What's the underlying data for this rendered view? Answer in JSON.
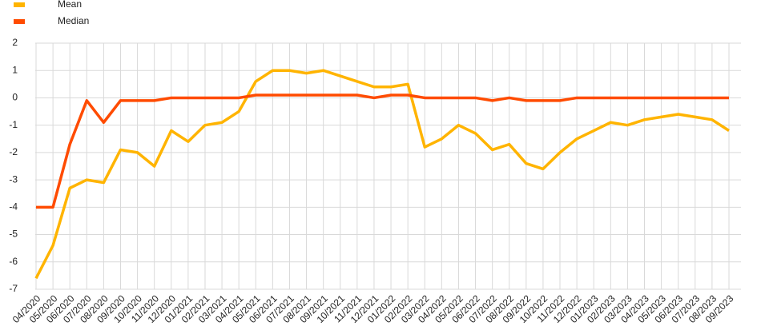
{
  "chart_data": {
    "type": "line",
    "categories": [
      "04/2020",
      "05/2020",
      "06/2020",
      "07/2020",
      "08/2020",
      "09/2020",
      "10/2020",
      "11/2020",
      "12/2020",
      "01/2021",
      "02/2021",
      "03/2021",
      "04/2021",
      "05/2021",
      "06/2021",
      "07/2021",
      "08/2021",
      "09/2021",
      "10/2021",
      "11/2021",
      "12/2021",
      "01/2022",
      "02/2022",
      "03/2022",
      "04/2022",
      "05/2022",
      "06/2022",
      "07/2022",
      "08/2022",
      "09/2022",
      "10/2022",
      "11/2022",
      "12/2022",
      "01/2023",
      "02/2023",
      "03/2023",
      "04/2023",
      "05/2023",
      "06/2023",
      "07/2023",
      "08/2023",
      "09/2023"
    ],
    "series": [
      {
        "name": "Mean",
        "color": "#ffb400",
        "values": [
          -6.6,
          -5.4,
          -3.3,
          -3.0,
          -3.1,
          -1.9,
          -2.0,
          -2.5,
          -1.2,
          -1.6,
          -1.0,
          -0.9,
          -0.5,
          0.6,
          1.0,
          1.0,
          0.9,
          1.0,
          0.8,
          0.6,
          0.4,
          0.4,
          0.5,
          -1.8,
          -1.5,
          -1.0,
          -1.3,
          -1.9,
          -1.7,
          -2.4,
          -2.6,
          -2.0,
          -1.5,
          -1.2,
          -0.9,
          -1.0,
          -0.8,
          -0.7,
          -0.6,
          -0.7,
          -0.8,
          -1.2
        ]
      },
      {
        "name": "Median",
        "color": "#ff4b00",
        "values": [
          -4,
          -4,
          -1.7,
          -0.1,
          -0.9,
          -0.1,
          -0.1,
          -0.1,
          0,
          0,
          0,
          0,
          0,
          0.1,
          0.1,
          0.1,
          0.1,
          0.1,
          0.1,
          0.1,
          0,
          0.1,
          0.1,
          0,
          0,
          0,
          0,
          -0.1,
          0,
          -0.1,
          -0.1,
          -0.1,
          0,
          0,
          0,
          0,
          0,
          0,
          0,
          0,
          0,
          0
        ]
      }
    ],
    "ylim": [
      -7,
      2
    ],
    "yticks": [
      2,
      1,
      0,
      -1,
      -2,
      -3,
      -4,
      -5,
      -6,
      -7
    ],
    "grid": true,
    "legend": "top-left"
  }
}
